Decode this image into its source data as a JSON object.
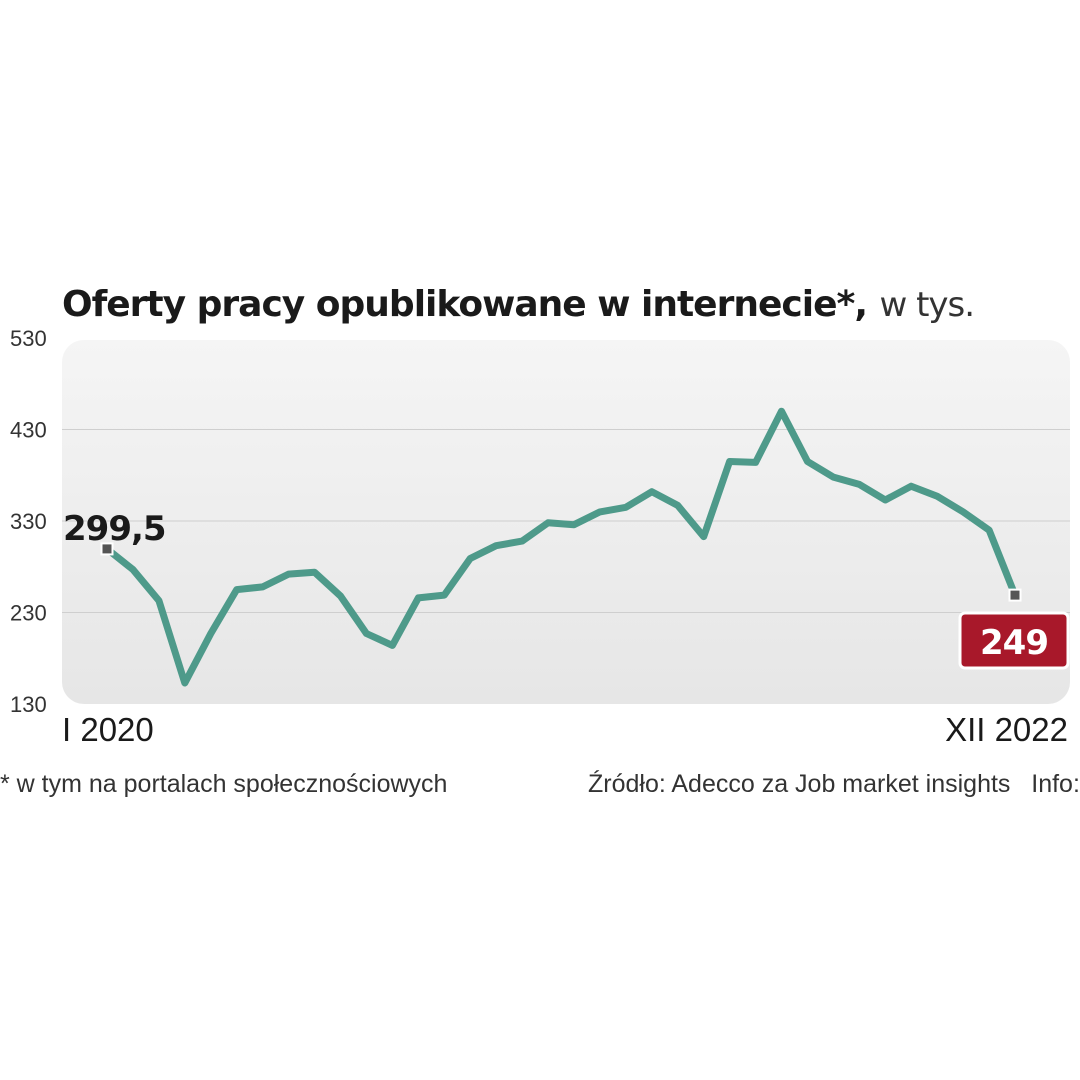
{
  "chart_data": {
    "type": "line",
    "title": "Oferty pracy opublikowane w internecie*,",
    "title_unit": "w tys.",
    "y_ticks": [
      "530",
      "430",
      "330",
      "230",
      "130"
    ],
    "ylim": [
      130,
      530
    ],
    "x_start_label": "I 2020",
    "x_end_label": "XII 2022",
    "start_value_label": "299,5",
    "end_value_label": "249",
    "series": [
      {
        "color": "#4e9a8a",
        "values": [
          299.5,
          277,
          243,
          153,
          207,
          255,
          258,
          272,
          274,
          248,
          207,
          194,
          246,
          249,
          289,
          303,
          308,
          328,
          326,
          340,
          345,
          362,
          347,
          313,
          395,
          394,
          450,
          395,
          378,
          370,
          353,
          368,
          357,
          340,
          320,
          249
        ]
      }
    ],
    "grid": true,
    "footnote": "* w tym na portalach społecznościowych",
    "source": "Źródło: Adecco za Job market insights   Info: S"
  }
}
